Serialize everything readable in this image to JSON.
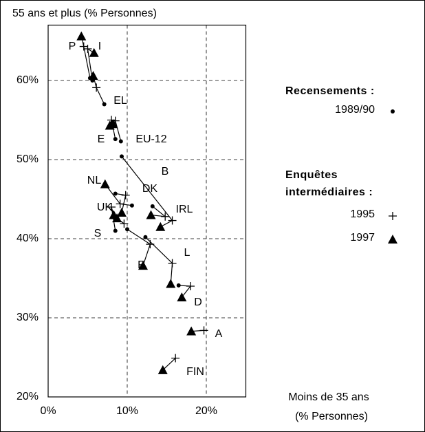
{
  "chart_data": {
    "type": "scatter",
    "title": "55 ans et plus (% Personnes)",
    "x_label": [
      "Moins de 35 ans",
      "(% Personnes)"
    ],
    "legend_headings": [
      "Recensements :",
      "Enquêtes",
      "intermédiaires :"
    ],
    "categories": [
      "P",
      "I",
      "EL",
      "E",
      "EU-12",
      "B",
      "NL",
      "DK",
      "UK",
      "IRL",
      "S",
      "F",
      "L",
      "D",
      "A",
      "FIN"
    ],
    "series": [
      {
        "name": "1989/90",
        "marker": "dot",
        "color": "#000000",
        "x": [
          5.3,
          5.6,
          7.1,
          8.5,
          9.2,
          9.3,
          10.6,
          8.5,
          8.5,
          13.2,
          null,
          10.0,
          12.3,
          16.5,
          null,
          null
        ],
        "values": [
          60.3,
          60.0,
          57.0,
          52.6,
          52.3,
          50.4,
          44.2,
          45.7,
          41.0,
          44.1,
          null,
          41.2,
          40.2,
          34.1,
          null,
          null
        ]
      },
      {
        "name": "1995",
        "marker": "plus",
        "color": "#000000",
        "x": [
          4.5,
          5.0,
          6.1,
          8.0,
          8.5,
          15.7,
          9.1,
          9.8,
          8.0,
          14.8,
          9.6,
          12.9,
          15.7,
          18.0,
          19.7,
          16.1
        ],
        "values": [
          64.3,
          64.0,
          59.1,
          55.0,
          54.9,
          42.3,
          44.4,
          45.5,
          44.0,
          42.8,
          41.9,
          39.3,
          36.9,
          34.0,
          28.4,
          24.9
        ]
      },
      {
        "name": "1997",
        "marker": "triangle",
        "color": "#000000",
        "x": [
          4.2,
          5.8,
          5.7,
          7.8,
          8.2,
          14.2,
          7.2,
          9.3,
          8.3,
          13.0,
          8.7,
          12.0,
          15.5,
          16.9,
          18.1,
          14.5
        ],
        "values": [
          65.6,
          63.5,
          60.6,
          54.3,
          54.5,
          41.5,
          46.9,
          43.3,
          43.0,
          43.0,
          42.6,
          36.6,
          34.3,
          32.6,
          28.3,
          23.4
        ]
      }
    ],
    "xlim": [
      0,
      25
    ],
    "ylim": [
      20,
      67
    ],
    "xticks": [
      {
        "value": 0,
        "label": "0%"
      },
      {
        "value": 10,
        "label": "10%"
      },
      {
        "value": 20,
        "label": "20%"
      }
    ],
    "yticks": [
      {
        "value": 20,
        "label": "20%"
      },
      {
        "value": 30,
        "label": "30%"
      },
      {
        "value": 40,
        "label": "40%"
      },
      {
        "value": 50,
        "label": "50%"
      },
      {
        "value": 60,
        "label": "60%"
      }
    ],
    "grid": true
  }
}
